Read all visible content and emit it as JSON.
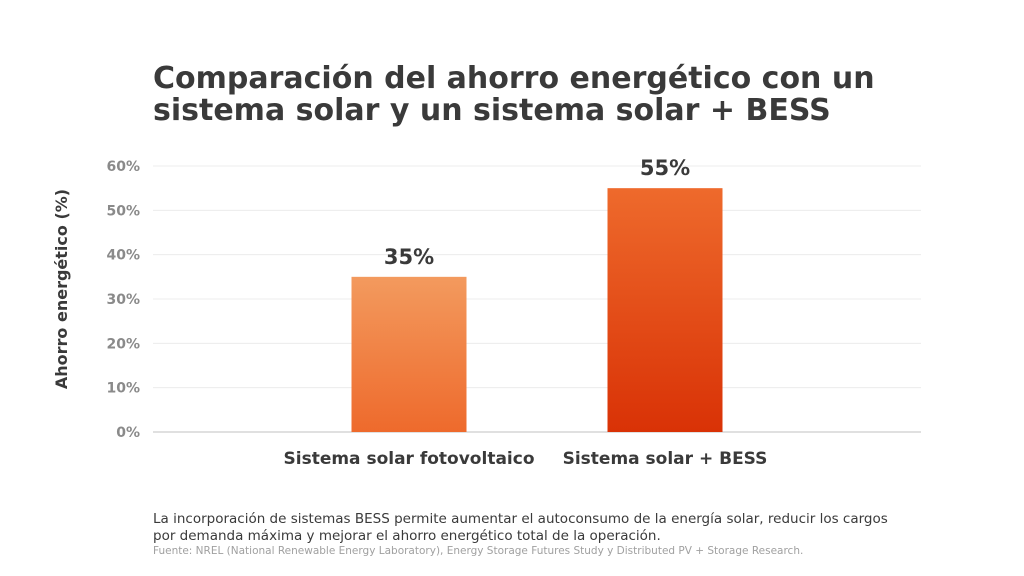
{
  "chart_data": {
    "type": "bar",
    "title": "Comparación del ahorro energético con un sistema solar y un sistema solar + BESS",
    "xlabel": "",
    "ylabel": "Ahorro energético (%)",
    "categories": [
      "Sistema solar fotovoltaico",
      "Sistema solar + BESS"
    ],
    "values": [
      35,
      55
    ],
    "data_labels": [
      "35%",
      "55%"
    ],
    "ylim": [
      0,
      60
    ],
    "yticks": [
      0,
      10,
      20,
      30,
      40,
      50,
      60
    ],
    "ytick_labels": [
      "0%",
      "10%",
      "20%",
      "30%",
      "40%",
      "50%",
      "60%"
    ],
    "grid": true,
    "legend": "none",
    "colors": {
      "bar1_top": "#F39A5E",
      "bar1_bottom": "#EE6A2C",
      "bar2_top": "#EE6A2C",
      "bar2_bottom": "#D93206",
      "text": "#3a3a3a",
      "tick": "#8a8a8a",
      "grid": "#ececec"
    }
  },
  "footer": {
    "note": "La incorporación de sistemas BESS permite aumentar el autoconsumo de la energía solar, reducir los cargos por demanda máxima y mejorar el ahorro energético total de la operación.",
    "source": "Fuente: NREL (National Renewable Energy Laboratory), Energy Storage Futures Study y Distributed PV + Storage Research."
  }
}
